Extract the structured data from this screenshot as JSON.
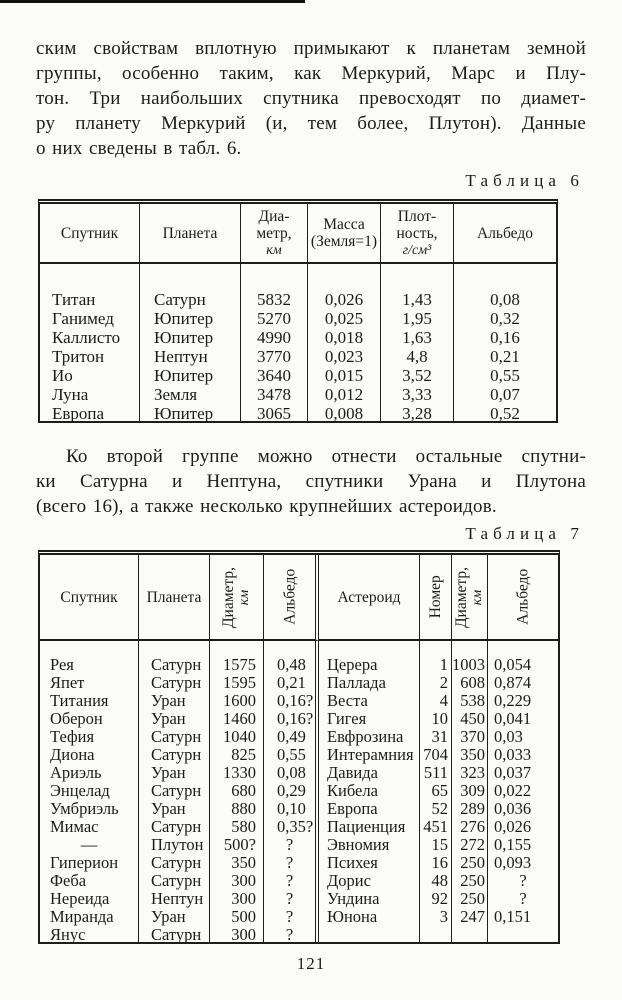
{
  "page": {
    "paragraph1_lines": [
      "ским свойствам вплотную примыкают к планетам земной",
      "группы, особенно таким, как Меркурий, Марс и Плу-",
      "тон. Три наибольших спутника превосходят по диамет-",
      "ру планету Меркурий (и, тем более, Плутон). Данные",
      "о них сведены в табл. 6."
    ],
    "caption6": "Таблица 6",
    "paragraph2_lines": [
      "Ко второй группе можно отнести остальные спутни-",
      "ки Сатурна и Нептуна, спутники Урана и Плутона",
      "(всего 16), а также несколько крупнейших астероидов."
    ],
    "caption7": "Таблица 7",
    "page_number": "121"
  },
  "table6": {
    "headers": [
      {
        "lines": [
          "Спутник"
        ]
      },
      {
        "lines": [
          "Планета"
        ]
      },
      {
        "lines": [
          "Диа-",
          "метр,",
          "*км*"
        ]
      },
      {
        "lines": [
          "Масса",
          "(Земля=1)"
        ]
      },
      {
        "lines": [
          "Плот-",
          "ность,",
          "*г/см³*"
        ]
      },
      {
        "lines": [
          "Альбедо"
        ]
      }
    ],
    "rows": [
      [
        "Титан",
        "Сатурн",
        "5832",
        "0,026",
        "1,43",
        "0,08"
      ],
      [
        "Ганимед",
        "Юпитер",
        "5270",
        "0,025",
        "1,95",
        "0,32"
      ],
      [
        "Каллисто",
        "Юпитер",
        "4990",
        "0,018",
        "1,63",
        "0,16"
      ],
      [
        "Тритон",
        "Нептун",
        "3770",
        "0,023",
        "4,8",
        "0,21"
      ],
      [
        "Ио",
        "Юпитер",
        "3640",
        "0,015",
        "3,52",
        "0,55"
      ],
      [
        "Луна",
        "Земля",
        "3478",
        "0,012",
        "3,33",
        "0,07"
      ],
      [
        "Европа",
        "Юпитер",
        "3065",
        "0,008",
        "3,28",
        "0,52"
      ]
    ]
  },
  "table7": {
    "headers": [
      {
        "lines": [
          "Спутник"
        ]
      },
      {
        "lines": [
          "Планета"
        ]
      },
      {
        "lines": [
          "Диаметр,",
          "*км*"
        ]
      },
      {
        "lines": [
          "Альбедо"
        ]
      },
      {
        "lines": [
          "Астероид"
        ]
      },
      {
        "lines": [
          "Номер"
        ]
      },
      {
        "lines": [
          "Диаметр,",
          "*км*"
        ]
      },
      {
        "lines": [
          "Альбедо"
        ]
      }
    ],
    "rows": [
      [
        "Рея",
        "Сатурн",
        "1575",
        "0,48",
        "Церера",
        "1",
        "1003",
        "0,054"
      ],
      [
        "Япет",
        "Сатурн",
        "1595",
        "0,21",
        "Паллада",
        "2",
        "608",
        "0,874"
      ],
      [
        "Титания",
        "Уран",
        "1600",
        "0,16?",
        "Веста",
        "4",
        "538",
        "0,229"
      ],
      [
        "Оберон",
        "Уран",
        "1460",
        "0,16?",
        "Гигея",
        "10",
        "450",
        "0,041"
      ],
      [
        "Тефия",
        "Сатурн",
        "1040",
        "0,49",
        "Евфрозина",
        "31",
        "370",
        "0,03"
      ],
      [
        "Диона",
        "Сатурн",
        "825",
        "0,55",
        "Интерамния",
        "704",
        "350",
        "0,033"
      ],
      [
        "Ариэль",
        "Уран",
        "1330",
        "0,08",
        "Давида",
        "511",
        "323",
        "0,037"
      ],
      [
        "Энцелад",
        "Сатурн",
        "680",
        "0,29",
        "Кибела",
        "65",
        "309",
        "0,022"
      ],
      [
        "Умбриэль",
        "Уран",
        "880",
        "0,10",
        "Европа",
        "52",
        "289",
        "0,036"
      ],
      [
        "Мимас",
        "Сатурн",
        "580",
        "0,35?",
        "Пациенция",
        "451",
        "276",
        "0,026"
      ],
      [
        "—",
        "Плутон",
        "500?",
        "?",
        "Эвномия",
        "15",
        "272",
        "0,155"
      ],
      [
        "Гиперион",
        "Сатурн",
        "350",
        "?",
        "Психея",
        "16",
        "250",
        "0,093"
      ],
      [
        "Феба",
        "Сатурн",
        "300",
        "?",
        "Дорис",
        "48",
        "250",
        "?"
      ],
      [
        "Нереида",
        "Нептун",
        "300",
        "?",
        "Ундина",
        "92",
        "250",
        "?"
      ],
      [
        "Миранда",
        "Уран",
        "500",
        "?",
        "Юнона",
        "3",
        "247",
        "0,151"
      ],
      [
        "Янус",
        "Сатурн",
        "300",
        "?",
        "",
        "",
        "",
        ""
      ]
    ]
  }
}
